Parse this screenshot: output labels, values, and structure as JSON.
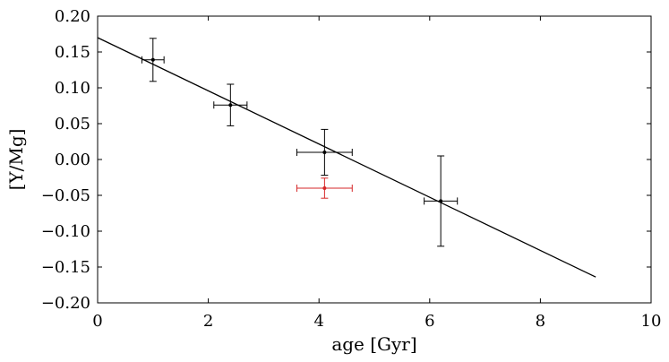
{
  "chart_data": {
    "type": "scatter",
    "title": "",
    "xlabel": "age [Gyr]",
    "ylabel": "[Y/Mg]",
    "xlim": [
      0,
      10
    ],
    "ylim": [
      -0.2,
      0.2
    ],
    "grid": false,
    "x_ticks": [
      0,
      2,
      4,
      6,
      8,
      10
    ],
    "x_tick_labels": [
      "0",
      "2",
      "4",
      "6",
      "8",
      "10"
    ],
    "y_ticks": [
      -0.2,
      -0.15,
      -0.1,
      -0.05,
      0.0,
      0.05,
      0.1,
      0.15,
      0.2
    ],
    "y_tick_labels": [
      "−0.20",
      "−0.15",
      "−0.10",
      "−0.05",
      "0.00",
      "0.05",
      "0.10",
      "0.15",
      "0.20"
    ],
    "series": [
      {
        "name": "black points",
        "color": "#000000",
        "points": [
          {
            "x": 1.0,
            "y": 0.139,
            "xerr": 0.2,
            "yerr": 0.03
          },
          {
            "x": 2.4,
            "y": 0.076,
            "xerr": 0.3,
            "yerr": 0.029
          },
          {
            "x": 4.1,
            "y": 0.01,
            "xerr": 0.5,
            "yerr": 0.032
          },
          {
            "x": 6.2,
            "y": -0.058,
            "xerr": 0.3,
            "yerr": 0.063
          }
        ]
      },
      {
        "name": "red point",
        "color": "#d62728",
        "points": [
          {
            "x": 4.1,
            "y": -0.04,
            "xerr": 0.5,
            "yerr": 0.014
          }
        ]
      }
    ],
    "fit_line": {
      "x": [
        0,
        9
      ],
      "y": [
        0.17,
        -0.164
      ],
      "color": "#000000"
    }
  }
}
